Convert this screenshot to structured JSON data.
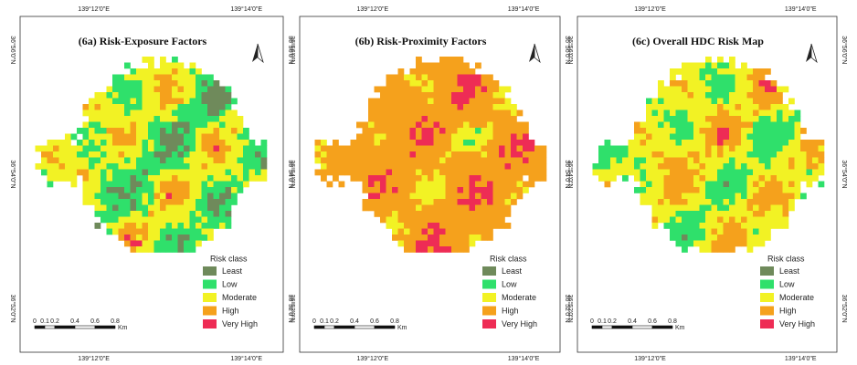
{
  "panels": [
    {
      "title": "(6a) Risk-Exposure Factors"
    },
    {
      "title": "(6b) Risk-Proximity Factors"
    },
    {
      "title": "(6c) Overall HDC Risk Map"
    }
  ],
  "x_labels": [
    "139°12'0\"E",
    "139°14'0\"E"
  ],
  "y_labels": [
    "36°56'0\"N",
    "36°54'0\"N",
    "36°52'0\"N"
  ],
  "legend": {
    "title": "Risk class",
    "classes": [
      {
        "label": "Least",
        "color": "#6f8a5b"
      },
      {
        "label": "Low",
        "color": "#2fe06b"
      },
      {
        "label": "Moderate",
        "color": "#f2f224"
      },
      {
        "label": "High",
        "color": "#f5a11c"
      },
      {
        "label": "Very High",
        "color": "#ee2c55"
      }
    ]
  },
  "scale": {
    "ticks": [
      "0",
      "0.1",
      "0.2",
      "0.4",
      "0.6",
      "0.8"
    ],
    "unit": "Km"
  }
}
